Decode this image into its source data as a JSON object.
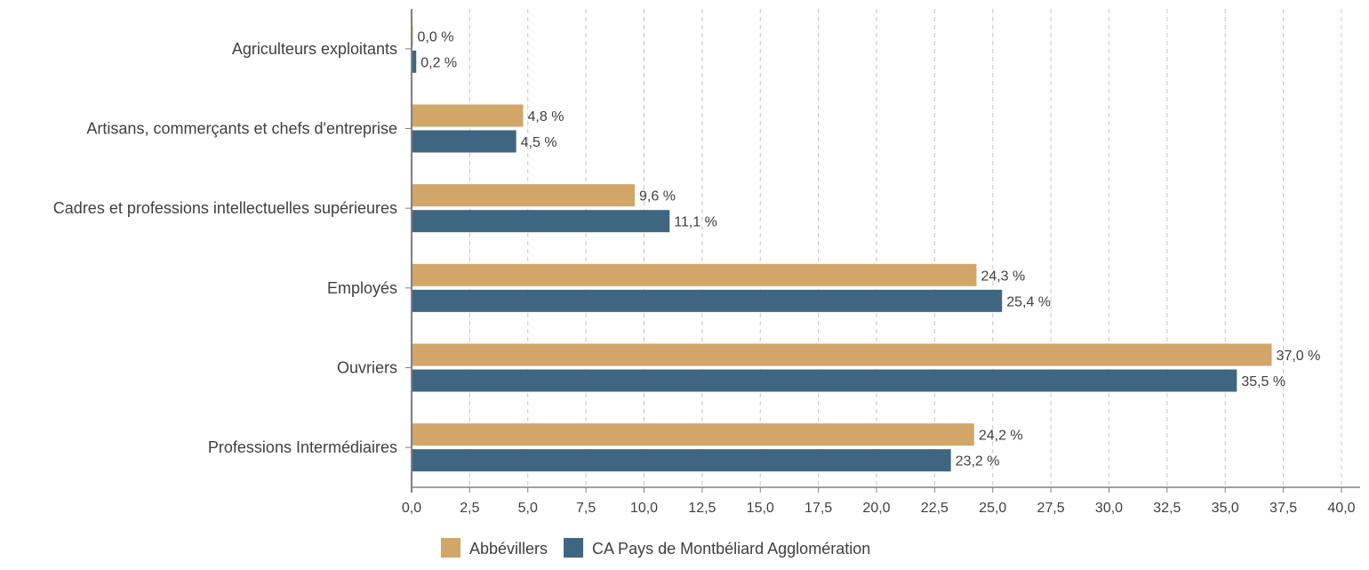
{
  "chart_data": {
    "type": "bar",
    "orientation": "horizontal",
    "title": "",
    "xlabel": "",
    "ylabel": "",
    "xlim": [
      0,
      40
    ],
    "x_tick_step": 2.5,
    "x_tick_labels": [
      "0,0",
      "2,5",
      "5,0",
      "7,5",
      "10,0",
      "12,5",
      "15,0",
      "17,5",
      "20,0",
      "22,5",
      "25,0",
      "27,5",
      "30,0",
      "32,5",
      "35,0",
      "37,5",
      "40,0"
    ],
    "grid": "vertical dashed",
    "legend_position": "bottom-left",
    "categories": [
      "Agriculteurs exploitants",
      "Artisans, commerçants et chefs d'entreprise",
      "Cadres et professions intellectuelles supérieures",
      "Employés",
      "Ouvriers",
      "Professions Intermédiaires"
    ],
    "series": [
      {
        "name": "Abbévillers",
        "color": "#D2A569",
        "values": [
          0.0,
          4.8,
          9.6,
          24.3,
          37.0,
          24.2
        ],
        "labels": [
          "0,0 %",
          "4,8 %",
          "9,6 %",
          "24,3 %",
          "37,0 %",
          "24,2 %"
        ]
      },
      {
        "name": "CA Pays de Montbéliard Agglomération",
        "color": "#3F6680",
        "values": [
          0.2,
          4.5,
          11.1,
          25.4,
          35.5,
          23.2
        ],
        "labels": [
          "0,2 %",
          "4,5 %",
          "11,1 %",
          "25,4 %",
          "35,5 %",
          "23,2 %"
        ]
      }
    ]
  }
}
